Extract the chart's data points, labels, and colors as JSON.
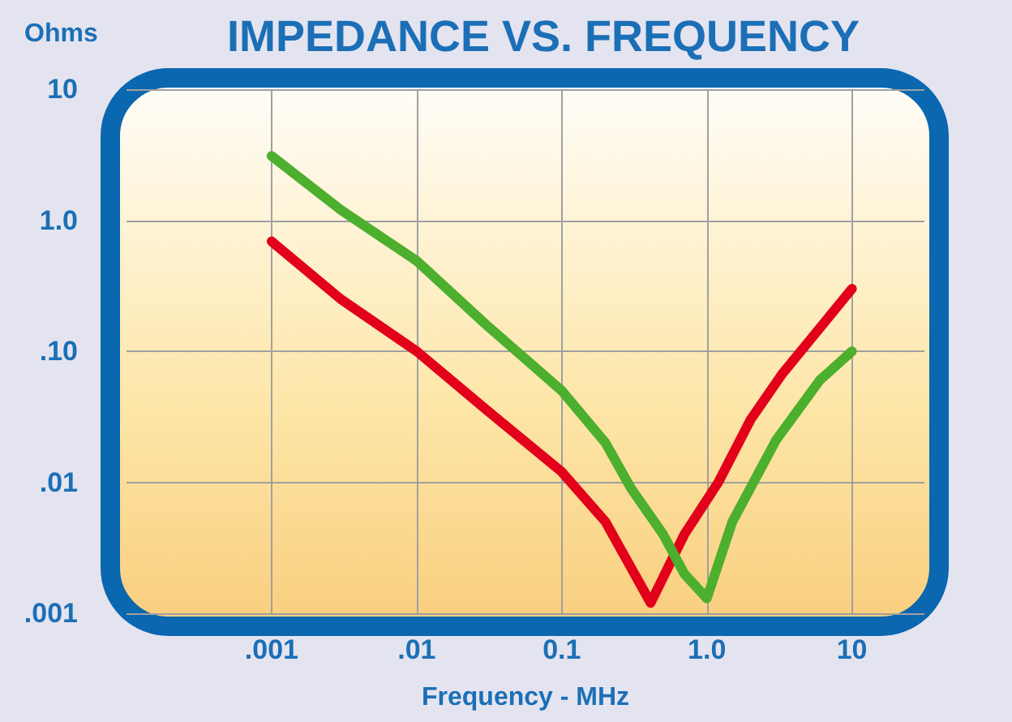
{
  "chart_data": {
    "type": "line",
    "title": "IMPEDANCE VS. FREQUENCY",
    "xlabel": "Frequency - MHz",
    "ylabel": "Ohms",
    "log": "xy",
    "grid": true,
    "marker": "none",
    "line_style": "solid",
    "xlim": [
      0.0001,
      31.6
    ],
    "ylim": [
      0.001,
      10
    ],
    "xticks": [
      {
        "value": 0.001,
        "label": ".001"
      },
      {
        "value": 0.01,
        "label": ".01"
      },
      {
        "value": 0.1,
        "label": "0.1"
      },
      {
        "value": 1,
        "label": "1.0"
      },
      10
    ],
    "yticks": [
      {
        "value": 0.001,
        "label": ".001"
      },
      {
        "value": 0.01,
        "label": ".01"
      },
      {
        "value": 0.1,
        "label": ".10"
      },
      {
        "value": 1,
        "label": "1.0"
      },
      10
    ],
    "series": [
      {
        "color": "#e2001a",
        "x": [
          0.001,
          0.003,
          0.01,
          0.03,
          0.1,
          0.2,
          0.41,
          0.7,
          1.2,
          2,
          3.3,
          6,
          10
        ],
        "values": [
          0.69,
          0.25,
          0.1,
          0.036,
          0.012,
          0.005,
          0.0012,
          0.004,
          0.01,
          0.03,
          0.067,
          0.15,
          0.3
        ]
      },
      {
        "color": "#4caf2d",
        "x": [
          0.001,
          0.003,
          0.01,
          0.03,
          0.1,
          0.2,
          0.3,
          0.5,
          0.7,
          1,
          1.5,
          3,
          6,
          10
        ],
        "values": [
          3.1,
          1.2,
          0.49,
          0.16,
          0.05,
          0.02,
          0.009,
          0.004,
          0.002,
          0.0013,
          0.005,
          0.021,
          0.06,
          0.1
        ]
      }
    ]
  }
}
